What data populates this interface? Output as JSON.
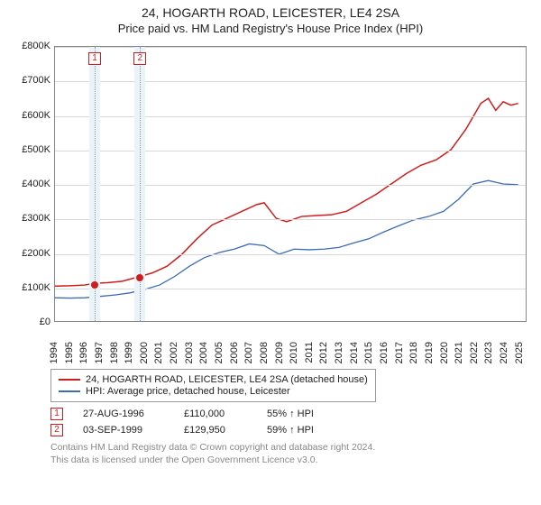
{
  "title": "24, HOGARTH ROAD, LEICESTER, LE4 2SA",
  "subtitle": "Price paid vs. HM Land Registry's House Price Index (HPI)",
  "chart": {
    "type": "line",
    "background_color": "#ffffff",
    "grid_color": "#d8d8d8",
    "axis_color": "#888888",
    "xlim": [
      1994,
      2025.5
    ],
    "ylim": [
      0,
      800000
    ],
    "ytick_step": 100000,
    "yticks": [
      "£0",
      "£100K",
      "£200K",
      "£300K",
      "£400K",
      "£500K",
      "£600K",
      "£700K",
      "£800K"
    ],
    "xticks": [
      1994,
      1995,
      1996,
      1997,
      1998,
      1999,
      2000,
      2001,
      2002,
      2003,
      2004,
      2005,
      2006,
      2007,
      2008,
      2009,
      2010,
      2011,
      2012,
      2013,
      2014,
      2015,
      2016,
      2017,
      2018,
      2019,
      2020,
      2021,
      2022,
      2023,
      2024,
      2025
    ],
    "series": [
      {
        "name": "property",
        "label": "24, HOGARTH ROAD, LEICESTER, LE4 2SA (detached house)",
        "color": "#d01c1c",
        "line_width": 1.5,
        "points": [
          [
            1994.0,
            102000
          ],
          [
            1995.0,
            103000
          ],
          [
            1996.0,
            105000
          ],
          [
            1996.65,
            110000
          ],
          [
            1997.5,
            112000
          ],
          [
            1998.5,
            116000
          ],
          [
            1999.67,
            129950
          ],
          [
            2000.5,
            140000
          ],
          [
            2001.5,
            160000
          ],
          [
            2002.5,
            195000
          ],
          [
            2003.5,
            240000
          ],
          [
            2004.5,
            280000
          ],
          [
            2005.5,
            300000
          ],
          [
            2006.5,
            320000
          ],
          [
            2007.5,
            340000
          ],
          [
            2008.0,
            345000
          ],
          [
            2008.8,
            300000
          ],
          [
            2009.5,
            290000
          ],
          [
            2010.5,
            305000
          ],
          [
            2011.5,
            308000
          ],
          [
            2012.5,
            310000
          ],
          [
            2013.5,
            320000
          ],
          [
            2014.5,
            345000
          ],
          [
            2015.5,
            370000
          ],
          [
            2016.5,
            400000
          ],
          [
            2017.5,
            430000
          ],
          [
            2018.5,
            455000
          ],
          [
            2019.5,
            470000
          ],
          [
            2020.5,
            500000
          ],
          [
            2021.5,
            560000
          ],
          [
            2022.5,
            635000
          ],
          [
            2023.0,
            650000
          ],
          [
            2023.5,
            615000
          ],
          [
            2024.0,
            640000
          ],
          [
            2024.5,
            630000
          ],
          [
            2025.0,
            635000
          ]
        ]
      },
      {
        "name": "hpi",
        "label": "HPI: Average price, detached house, Leicester",
        "color": "#3b6db3",
        "line_width": 1.3,
        "points": [
          [
            1994.0,
            68000
          ],
          [
            1995.0,
            67000
          ],
          [
            1996.0,
            68000
          ],
          [
            1997.0,
            72000
          ],
          [
            1998.0,
            76000
          ],
          [
            1999.0,
            82000
          ],
          [
            2000.0,
            92000
          ],
          [
            2001.0,
            105000
          ],
          [
            2002.0,
            130000
          ],
          [
            2003.0,
            160000
          ],
          [
            2004.0,
            185000
          ],
          [
            2005.0,
            200000
          ],
          [
            2006.0,
            210000
          ],
          [
            2007.0,
            225000
          ],
          [
            2008.0,
            220000
          ],
          [
            2009.0,
            195000
          ],
          [
            2010.0,
            210000
          ],
          [
            2011.0,
            208000
          ],
          [
            2012.0,
            210000
          ],
          [
            2013.0,
            215000
          ],
          [
            2014.0,
            228000
          ],
          [
            2015.0,
            240000
          ],
          [
            2016.0,
            260000
          ],
          [
            2017.0,
            278000
          ],
          [
            2018.0,
            295000
          ],
          [
            2019.0,
            305000
          ],
          [
            2020.0,
            320000
          ],
          [
            2021.0,
            355000
          ],
          [
            2022.0,
            400000
          ],
          [
            2023.0,
            410000
          ],
          [
            2024.0,
            400000
          ],
          [
            2025.0,
            398000
          ]
        ]
      }
    ],
    "event_bands": [
      {
        "xstart": 1996.3,
        "xend": 1997.0,
        "color": "#eaf2fa"
      },
      {
        "xstart": 1999.3,
        "xend": 2000.0,
        "color": "#eaf2fa"
      }
    ],
    "event_dashes": [
      {
        "x": 1996.65,
        "color": "#999999"
      },
      {
        "x": 1999.67,
        "color": "#999999"
      }
    ],
    "markers": [
      {
        "x": 1996.65,
        "y": 110000,
        "color": "#d01c1c",
        "label": "1"
      },
      {
        "x": 1999.67,
        "y": 129950,
        "color": "#d01c1c",
        "label": "2"
      }
    ],
    "marker_box_color": "#d01c1c"
  },
  "legend": {
    "items": [
      {
        "color": "#d01c1c",
        "label": "24, HOGARTH ROAD, LEICESTER, LE4 2SA (detached house)"
      },
      {
        "color": "#3b6db3",
        "label": "HPI: Average price, detached house, Leicester"
      }
    ]
  },
  "events": [
    {
      "num": "1",
      "date": "27-AUG-1996",
      "price": "£110,000",
      "pct": "55% ↑ HPI",
      "border": "#d01c1c"
    },
    {
      "num": "2",
      "date": "03-SEP-1999",
      "price": "£129,950",
      "pct": "59% ↑ HPI",
      "border": "#d01c1c"
    }
  ],
  "attribution": {
    "line1": "Contains HM Land Registry data © Crown copyright and database right 2024.",
    "line2": "This data is licensed under the Open Government Licence v3.0."
  }
}
